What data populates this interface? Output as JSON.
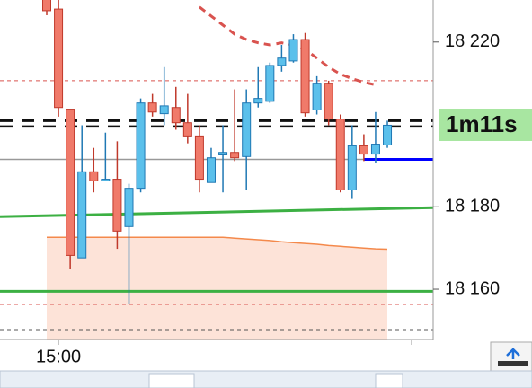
{
  "chart_data": {
    "type": "candlestick",
    "categories": [
      null,
      "15:00",
      null,
      null,
      null,
      null,
      null,
      null,
      null,
      null,
      null,
      null,
      null,
      null,
      null,
      null,
      null,
      null,
      null,
      null,
      null,
      null,
      null,
      null,
      null,
      null,
      null,
      null,
      null,
      null
    ],
    "open": [
      18230.6,
      18228.0,
      18203.7,
      18167.6,
      18188.5,
      18186.3,
      18186.7,
      18175.2,
      18184.5,
      18205.2,
      18202.6,
      18204.1,
      18200.4,
      18197.2,
      18185.9,
      18192.6,
      18193.2,
      18192.2,
      18205.2,
      18205.6,
      18214.3,
      18215.4,
      18220.6,
      18203.5,
      18210.0,
      18201.3,
      18184.1,
      18194.8,
      18192.8,
      18195.0
    ],
    "high": [
      18231.3,
      18230.2,
      18203.7,
      18199.8,
      18194.3,
      18198.0,
      18195.9,
      18185.6,
      18206.3,
      18207.4,
      18213.9,
      18209.1,
      18207.4,
      18199.8,
      18194.3,
      18199.8,
      18208.5,
      18208.5,
      18213.9,
      18215.0,
      18219.3,
      18221.9,
      18222.2,
      18211.7,
      18210.6,
      18202.4,
      18199.8,
      18197.6,
      18203.0,
      18200.9
    ],
    "low": [
      18226.5,
      18201.9,
      18165.0,
      18167.6,
      18183.5,
      18186.3,
      18169.8,
      18156.3,
      18183.5,
      18201.9,
      18199.8,
      18198.7,
      18195.4,
      18183.5,
      18185.9,
      18183.5,
      18191.1,
      18184.1,
      18204.1,
      18205.2,
      18212.8,
      18215.0,
      18201.9,
      18202.4,
      18199.8,
      18183.5,
      18181.9,
      18191.1,
      18190.6,
      18194.3
    ],
    "close": [
      18227.6,
      18204.1,
      18168.2,
      18188.5,
      18186.3,
      18186.7,
      18174.1,
      18184.5,
      18205.2,
      18203.0,
      18204.5,
      18200.4,
      18197.2,
      18186.7,
      18191.9,
      18193.2,
      18191.9,
      18205.2,
      18206.3,
      18214.3,
      18216.1,
      18220.6,
      18202.8,
      18210.0,
      18201.3,
      18184.1,
      18194.8,
      18192.8,
      18195.2,
      18199.8
    ],
    "up_color": "#5bc0eb",
    "down_color": "#f07a6a",
    "lines": [
      {
        "color": "#f4894b",
        "dash": false,
        "fill": "#fde3d8",
        "values": [
          18172.6,
          18172.6,
          18172.6,
          18172.6,
          18172.6,
          18172.6,
          18172.6,
          18172.6,
          18172.6,
          18172.6,
          18172.6,
          18172.6,
          18172.6,
          18172.6,
          18172.6,
          18172.6,
          18172.4,
          18172.2,
          18172.0,
          18171.8,
          18171.5,
          18171.3,
          18171.1,
          18170.9,
          18170.6,
          18170.4,
          18170.2,
          18170.0,
          18169.8,
          18169.7
        ]
      },
      {
        "color": "#d9534f",
        "dash": true,
        "fill": null,
        "values": [
          null,
          null,
          null,
          null,
          null,
          null,
          null,
          null,
          null,
          null,
          null,
          null,
          null,
          18228.5,
          18226.3,
          18224.1,
          18221.9,
          18220.6,
          18219.8,
          18219.3,
          18219.8,
          18219.3,
          18218.2,
          18216.1,
          18213.9,
          18212.2,
          18211.1,
          18210.2,
          18209.6,
          null
        ]
      }
    ],
    "trend": {
      "start": 18177.6,
      "end": 18179.8,
      "color": "#3cb043"
    },
    "levels": [
      {
        "value": 18210.6,
        "color": "#d9534f",
        "dash": "4 4",
        "width": 1
      },
      {
        "value": 18156.3,
        "color": "#d9534f",
        "dash": "4 4",
        "width": 1
      },
      {
        "value": 18150.2,
        "color": "#555555",
        "dash": "4 4",
        "width": 1
      },
      {
        "value": 18191.5,
        "color": "#999999",
        "dash": null,
        "width": 1.5
      },
      {
        "value": 18159.5,
        "color": "#3cb043",
        "dash": null,
        "width": 3
      },
      {
        "value": 18200.9,
        "color": "#111111",
        "dash": "14 10",
        "width": 3
      },
      {
        "value": 18199.6,
        "color": "#111111",
        "dash": "14 10",
        "width": 1.5
      },
      {
        "value": 18191.5,
        "color": "#0000ff",
        "dash": null,
        "width": 3,
        "from_category": 27
      }
    ],
    "countdown": "1m11s",
    "ylim": [
      18147.8,
      18230.2
    ],
    "yticks": [
      {
        "value": 18160,
        "label": "18 160"
      },
      {
        "value": 18180,
        "label": "18 180"
      },
      {
        "value": 18220,
        "label": "18 220"
      }
    ]
  }
}
